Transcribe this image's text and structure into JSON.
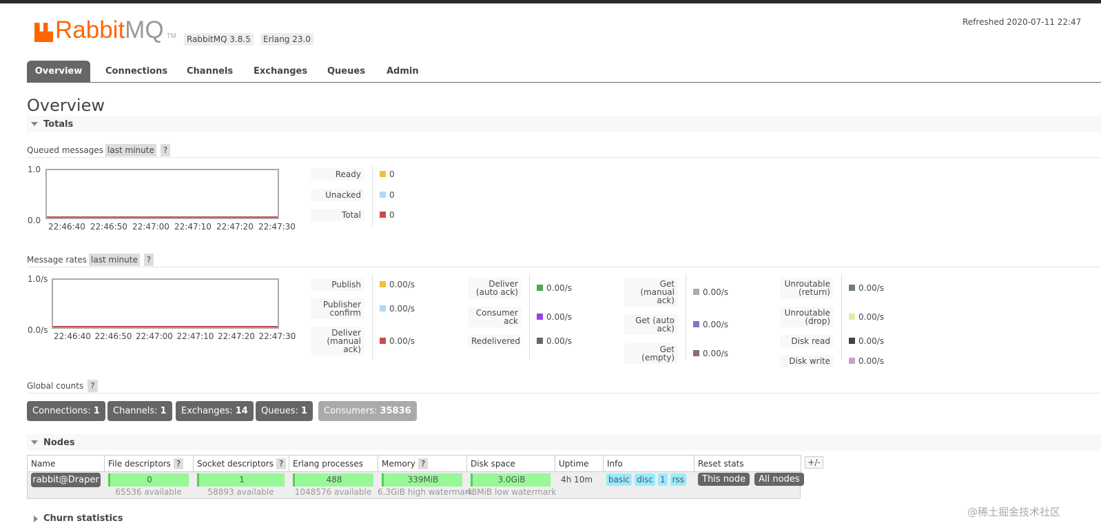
{
  "header": {
    "logo_part1": "Rabbit",
    "logo_part2": "MQ",
    "trademark": "TM",
    "version": "RabbitMQ 3.8.5",
    "erlang": "Erlang 23.0",
    "refreshed": "Refreshed 2020-07-11 22:47"
  },
  "tabs": [
    "Overview",
    "Connections",
    "Channels",
    "Exchanges",
    "Queues",
    "Admin"
  ],
  "page_title": "Overview",
  "totals": {
    "title": "Totals",
    "queued": {
      "label": "Queued messages",
      "range": "last minute",
      "help": "?",
      "y_labels": [
        "1.0",
        "0.0"
      ],
      "x_labels": [
        "22:46:40",
        "22:46:50",
        "22:47:00",
        "22:47:10",
        "22:47:20",
        "22:47:30"
      ],
      "legend": [
        {
          "name": "Ready",
          "color": "#edc240",
          "value": 0
        },
        {
          "name": "Unacked",
          "color": "#afd8f8",
          "value": 0
        },
        {
          "name": "Total",
          "color": "#cb4b4b",
          "value": 0
        }
      ]
    },
    "rates": {
      "label": "Message rates",
      "range": "last minute",
      "help": "?",
      "y_labels": [
        "1.0/s",
        "0.0/s"
      ],
      "x_labels": [
        "22:46:40",
        "22:46:50",
        "22:47:00",
        "22:47:10",
        "22:47:20",
        "22:47:30"
      ],
      "legend": [
        [
          {
            "name": "Publish",
            "color": "#edc240",
            "value": "0.00/s"
          },
          {
            "name": "Publisher confirm",
            "color": "#afd8f8",
            "value": "0.00/s"
          },
          {
            "name": "Deliver (manual ack)",
            "color": "#cb4b4b",
            "value": "0.00/s"
          }
        ],
        [
          {
            "name": "Deliver (auto ack)",
            "color": "#4da74d",
            "value": "0.00/s"
          },
          {
            "name": "Consumer ack",
            "color": "#9440ed",
            "value": "0.00/s"
          },
          {
            "name": "Redelivered",
            "color": "#666666",
            "value": "0.00/s"
          }
        ],
        [
          {
            "name": "Get (manual ack)",
            "color": "#aaaaaa",
            "value": "0.00/s"
          },
          {
            "name": "Get (auto ack)",
            "color": "#7c79c3",
            "value": "0.00/s"
          },
          {
            "name": "Get (empty)",
            "color": "#8d6c6c",
            "value": "0.00/s"
          }
        ],
        [
          {
            "name": "Unroutable (return)",
            "color": "#6a7e88",
            "value": "0.00/s"
          },
          {
            "name": "Unroutable (drop)",
            "color": "#e1eaa8",
            "value": "0.00/s"
          },
          {
            "name": "Disk read",
            "color": "#444444",
            "value": "0.00/s"
          },
          {
            "name": "Disk write",
            "color": "#c8a2c8",
            "value": "0.00/s"
          }
        ]
      ]
    }
  },
  "global_counts": {
    "label": "Global counts",
    "help": "?",
    "items": [
      {
        "label": "Connections:",
        "value": 1
      },
      {
        "label": "Channels:",
        "value": 1
      },
      {
        "label": "Exchanges:",
        "value": 14
      },
      {
        "label": "Queues:",
        "value": 1
      },
      {
        "label": "Consumers:",
        "value": 35836
      }
    ]
  },
  "nodes": {
    "title": "Nodes",
    "toggle": "+/-",
    "columns": [
      {
        "name": "Name"
      },
      {
        "name": "File descriptors",
        "help": "?"
      },
      {
        "name": "Socket descriptors",
        "help": "?"
      },
      {
        "name": "Erlang processes"
      },
      {
        "name": "Memory",
        "help": "?"
      },
      {
        "name": "Disk space"
      },
      {
        "name": "Uptime"
      },
      {
        "name": "Info"
      },
      {
        "name": "Reset stats"
      }
    ],
    "row": {
      "name": "rabbit@Draper",
      "bars": [
        {
          "value": "0",
          "sub": "65536 available"
        },
        {
          "value": "1",
          "sub": "58893 available"
        },
        {
          "value": "488",
          "sub": "1048576 available"
        },
        {
          "value": "339MiB",
          "sub": "6.3GiB high watermark"
        },
        {
          "value": "3.0GiB",
          "sub": "48MiB low watermark"
        }
      ],
      "uptime": "4h 10m",
      "info": [
        "basic",
        "disc",
        "1",
        "rss"
      ],
      "reset": [
        "This node",
        "All nodes"
      ]
    }
  },
  "churn": "Churn statistics",
  "watermark": "@稀土掘金技术社区"
}
